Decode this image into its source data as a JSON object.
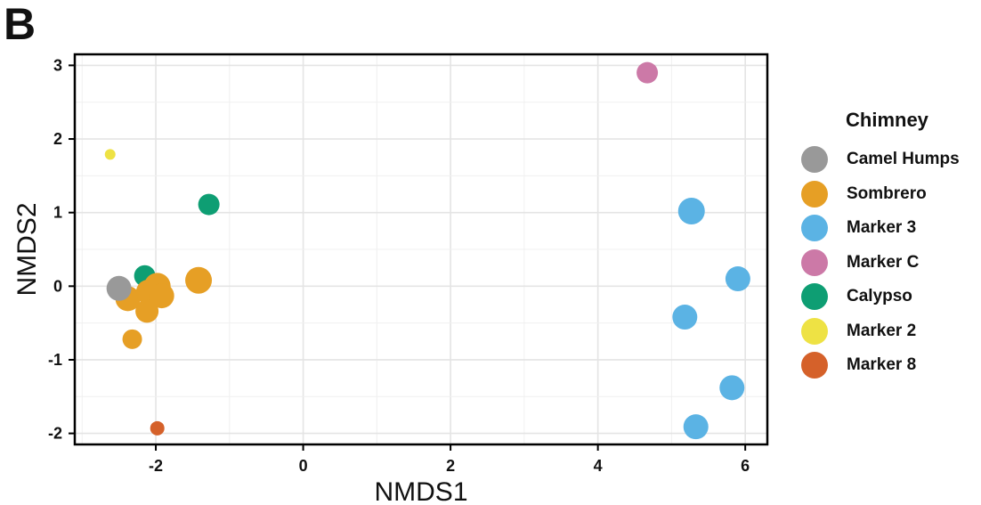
{
  "panel_label": "B",
  "chart_data": {
    "type": "scatter",
    "xlabel": "NMDS1",
    "ylabel": "NMDS2",
    "xlim": [
      -3.1,
      6.3
    ],
    "ylim": [
      -2.15,
      3.15
    ],
    "x_ticks": [
      -2,
      0,
      2,
      4,
      6
    ],
    "y_ticks": [
      -2,
      -1,
      0,
      1,
      2,
      3
    ],
    "grid": true,
    "legend": {
      "title": "Chimney",
      "placement": "right",
      "entries": [
        {
          "name": "Camel Humps",
          "color": "#999999"
        },
        {
          "name": "Sombrero",
          "color": "#E69F25"
        },
        {
          "name": "Marker 3",
          "color": "#5BB3E4"
        },
        {
          "name": "Marker C",
          "color": "#CC79A7"
        },
        {
          "name": "Calypso",
          "color": "#0E9E73"
        },
        {
          "name": "Marker 2",
          "color": "#EEE244"
        },
        {
          "name": "Marker 8",
          "color": "#D5612A"
        }
      ]
    },
    "points": [
      {
        "series": "Calypso",
        "x": -2.15,
        "y": 0.14,
        "size": 12
      },
      {
        "series": "Sombrero",
        "x": -2.38,
        "y": -0.17,
        "size": 14
      },
      {
        "series": "Camel Humps",
        "x": -2.5,
        "y": -0.03,
        "size": 14
      },
      {
        "series": "Sombrero",
        "x": -2.1,
        "y": -0.08,
        "size": 14
      },
      {
        "series": "Sombrero",
        "x": -2.12,
        "y": -0.34,
        "size": 13
      },
      {
        "series": "Sombrero",
        "x": -1.98,
        "y": 0.0,
        "size": 15
      },
      {
        "series": "Sombrero",
        "x": -1.92,
        "y": -0.13,
        "size": 14
      },
      {
        "series": "Sombrero",
        "x": -1.42,
        "y": 0.08,
        "size": 15
      },
      {
        "series": "Sombrero",
        "x": -2.32,
        "y": -0.72,
        "size": 11
      },
      {
        "series": "Calypso",
        "x": -1.28,
        "y": 1.11,
        "size": 12
      },
      {
        "series": "Marker 2",
        "x": -2.62,
        "y": 1.79,
        "size": 6
      },
      {
        "series": "Marker 8",
        "x": -1.98,
        "y": -1.93,
        "size": 8
      },
      {
        "series": "Marker C",
        "x": 4.67,
        "y": 2.9,
        "size": 12
      },
      {
        "series": "Marker 3",
        "x": 5.27,
        "y": 1.02,
        "size": 15
      },
      {
        "series": "Marker 3",
        "x": 5.9,
        "y": 0.1,
        "size": 14
      },
      {
        "series": "Marker 3",
        "x": 5.18,
        "y": -0.42,
        "size": 14
      },
      {
        "series": "Marker 3",
        "x": 5.82,
        "y": -1.38,
        "size": 14
      },
      {
        "series": "Marker 3",
        "x": 5.33,
        "y": -1.91,
        "size": 14
      }
    ]
  }
}
